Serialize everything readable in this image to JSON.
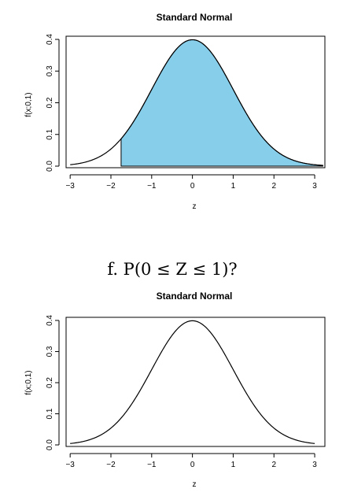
{
  "question": "f. P(0 ≤ Z ≤ 1)?",
  "chart_data": [
    {
      "type": "line",
      "title": "Standard Normal",
      "xlabel": "z",
      "ylabel": "f(x;0,1)",
      "xlim": [
        -3.1,
        3.25
      ],
      "ylim": [
        -0.005,
        0.41
      ],
      "xticks": [
        -3,
        -2,
        -1,
        0,
        1,
        2,
        3
      ],
      "yticks": [
        0.0,
        0.1,
        0.2,
        0.3,
        0.4
      ],
      "xtick_labels": [
        "−3",
        "−2",
        "−1",
        "0",
        "1",
        "2",
        "3"
      ],
      "ytick_labels": [
        "0.0",
        "0.1",
        "0.2",
        "0.3",
        "0.4"
      ],
      "curve": {
        "from": -3,
        "to": 3.2,
        "function": "standard normal pdf"
      },
      "shaded_region": {
        "from": -1.75,
        "to": 3.2,
        "color": "#87ceeb"
      }
    },
    {
      "type": "line",
      "title": "Standard Normal",
      "xlabel": "z",
      "ylabel": "f(x;0,1)",
      "xlim": [
        -3.1,
        3.25
      ],
      "ylim": [
        -0.005,
        0.41
      ],
      "xticks": [
        -3,
        -2,
        -1,
        0,
        1,
        2,
        3
      ],
      "yticks": [
        0.0,
        0.1,
        0.2,
        0.3,
        0.4
      ],
      "xtick_labels": [
        "−3",
        "−2",
        "−1",
        "0",
        "1",
        "2",
        "3"
      ],
      "ytick_labels": [
        "0.0",
        "0.1",
        "0.2",
        "0.3",
        "0.4"
      ],
      "curve": {
        "from": -3,
        "to": 3,
        "function": "standard normal pdf"
      }
    }
  ]
}
